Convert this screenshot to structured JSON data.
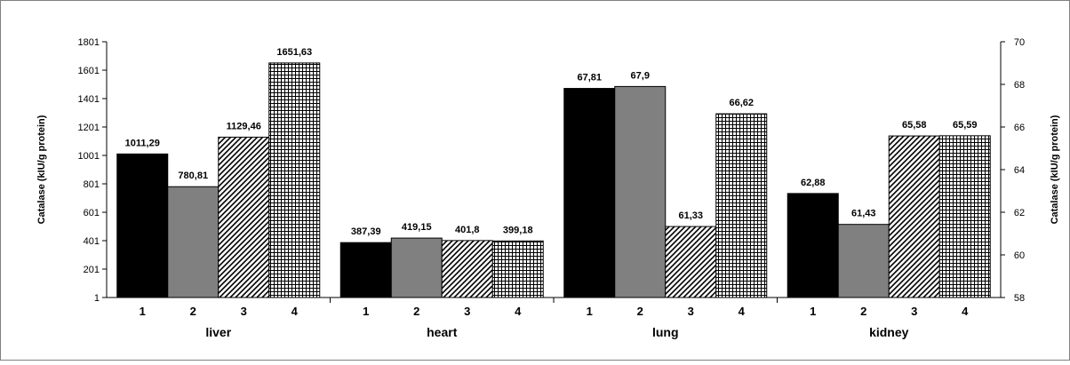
{
  "chart_data": {
    "type": "bar",
    "ylabel": "Catalase (kIU/g protein)",
    "ylabel_right": "Catalase (kIU/g protein)",
    "left_axis": {
      "ylim": [
        1,
        1801
      ],
      "ticks": [
        "1",
        "201",
        "401",
        "601",
        "801",
        "1001",
        "1201",
        "1401",
        "1601",
        "1801"
      ]
    },
    "right_axis": {
      "ylim": [
        58,
        70
      ],
      "ticks": [
        "58",
        "60",
        "62",
        "64",
        "66",
        "68",
        "70"
      ]
    },
    "sub_categories": [
      "1",
      "2",
      "3",
      "4"
    ],
    "groups": [
      {
        "label": "liver",
        "axis": "left",
        "values": [
          1011.29,
          780.81,
          1129.46,
          1651.63
        ],
        "value_labels": [
          "1011,29",
          "780,81",
          "1129,46",
          "1651,63"
        ]
      },
      {
        "label": "heart",
        "axis": "left",
        "values": [
          387.39,
          419.15,
          401.8,
          399.18
        ],
        "value_labels": [
          "387,39",
          "419,15",
          "401,8",
          "399,18"
        ]
      },
      {
        "label": "lung",
        "axis": "right",
        "values": [
          67.81,
          67.9,
          61.33,
          66.62
        ],
        "value_labels": [
          "67,81",
          "67,9",
          "61,33",
          "66,62"
        ]
      },
      {
        "label": "kidney",
        "axis": "right",
        "values": [
          62.88,
          61.43,
          65.58,
          65.59
        ],
        "value_labels": [
          "62,88",
          "61,43",
          "65,58",
          "65,59"
        ]
      }
    ],
    "bar_fills": [
      "solid-black",
      "solid-gray",
      "diagonal-hatch",
      "grid-hatch"
    ],
    "colors": {
      "bar1": "#000000",
      "bar2": "#808080",
      "hatch": "#000000",
      "axis": "#000000"
    },
    "grid": false,
    "legend": "none"
  }
}
